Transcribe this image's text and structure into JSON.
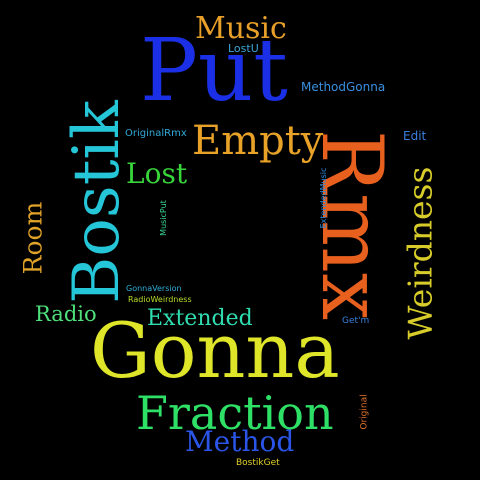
{
  "background": "#000000",
  "words": [
    {
      "text": "Put",
      "color": "#1a2fe6"
    },
    {
      "text": "Music",
      "color": "#e8a02a"
    },
    {
      "text": "LostU",
      "color": "#3ea6d6"
    },
    {
      "text": "MethodGonna",
      "color": "#3a8fe0"
    },
    {
      "text": "Bostik",
      "color": "#25c6d8"
    },
    {
      "text": "Empty",
      "color": "#e8a228"
    },
    {
      "text": "OriginalRmx",
      "color": "#2faad8"
    },
    {
      "text": "Edit",
      "color": "#3a7fe0"
    },
    {
      "text": "Lost",
      "color": "#37d43a"
    },
    {
      "text": "Rmx",
      "color": "#e8601e"
    },
    {
      "text": "Weirdness",
      "color": "#d7cc2a"
    },
    {
      "text": "ExtendedMusic",
      "color": "#2f8ad8"
    },
    {
      "text": "MusicPut",
      "color": "#38d690"
    },
    {
      "text": "Room",
      "color": "#e0a228"
    },
    {
      "text": "GonnaVersion",
      "color": "#30b0d8"
    },
    {
      "text": "RadioWeirdness",
      "color": "#b8dc2a"
    },
    {
      "text": "Radio",
      "color": "#4ee07a"
    },
    {
      "text": "Extended",
      "color": "#2fdcb0"
    },
    {
      "text": "Get'm",
      "color": "#3a80e0"
    },
    {
      "text": "Gonna",
      "color": "#dfe629"
    },
    {
      "text": "Fraction",
      "color": "#2ee066"
    },
    {
      "text": "Original",
      "color": "#e0702a"
    },
    {
      "text": "Method",
      "color": "#2a55e8"
    },
    {
      "text": "BostikGet",
      "color": "#e0d02a"
    }
  ]
}
